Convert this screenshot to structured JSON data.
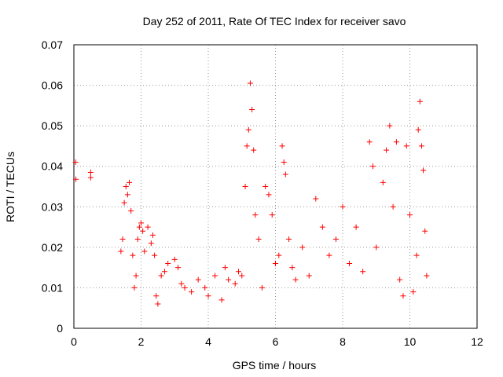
{
  "chart_data": {
    "type": "scatter",
    "title": "Day 252 of 2011, Rate Of TEC Index for receiver savo",
    "xlabel": "GPS time / hours",
    "ylabel": "ROTI / TECUs",
    "xlim": [
      0,
      12
    ],
    "ylim": [
      0,
      0.07
    ],
    "x_ticks": [
      "0",
      "2",
      "4",
      "6",
      "8",
      "10",
      "12"
    ],
    "y_ticks": [
      "0",
      "0.01",
      "0.02",
      "0.03",
      "0.04",
      "0.05",
      "0.06",
      "0.07"
    ],
    "grid": true,
    "legend": "none",
    "marker": "plus",
    "color": "#ff0000",
    "series": [
      {
        "values": [
          [
            0.05,
            0.041
          ],
          [
            0.06,
            0.0368
          ],
          [
            0.5,
            0.0385
          ],
          [
            0.5,
            0.0372
          ],
          [
            1.4,
            0.019
          ],
          [
            1.45,
            0.022
          ],
          [
            1.5,
            0.031
          ],
          [
            1.55,
            0.035
          ],
          [
            1.6,
            0.033
          ],
          [
            1.65,
            0.036
          ],
          [
            1.7,
            0.029
          ],
          [
            1.75,
            0.018
          ],
          [
            1.8,
            0.01
          ],
          [
            1.85,
            0.013
          ],
          [
            1.9,
            0.022
          ],
          [
            1.95,
            0.025
          ],
          [
            2.0,
            0.026
          ],
          [
            2.05,
            0.024
          ],
          [
            2.1,
            0.019
          ],
          [
            2.2,
            0.025
          ],
          [
            2.3,
            0.021
          ],
          [
            2.35,
            0.023
          ],
          [
            2.4,
            0.018
          ],
          [
            2.45,
            0.008
          ],
          [
            2.5,
            0.006
          ],
          [
            2.6,
            0.013
          ],
          [
            2.7,
            0.014
          ],
          [
            2.8,
            0.016
          ],
          [
            3.0,
            0.017
          ],
          [
            3.1,
            0.015
          ],
          [
            3.2,
            0.011
          ],
          [
            3.3,
            0.01
          ],
          [
            3.5,
            0.009
          ],
          [
            3.7,
            0.012
          ],
          [
            3.9,
            0.01
          ],
          [
            4.0,
            0.008
          ],
          [
            4.2,
            0.013
          ],
          [
            4.4,
            0.007
          ],
          [
            4.5,
            0.015
          ],
          [
            4.6,
            0.012
          ],
          [
            4.8,
            0.011
          ],
          [
            4.9,
            0.014
          ],
          [
            5.0,
            0.013
          ],
          [
            5.1,
            0.035
          ],
          [
            5.15,
            0.045
          ],
          [
            5.2,
            0.049
          ],
          [
            5.25,
            0.0605
          ],
          [
            5.3,
            0.054
          ],
          [
            5.35,
            0.044
          ],
          [
            5.4,
            0.028
          ],
          [
            5.5,
            0.022
          ],
          [
            5.6,
            0.01
          ],
          [
            5.7,
            0.035
          ],
          [
            5.8,
            0.033
          ],
          [
            5.9,
            0.028
          ],
          [
            6.0,
            0.016
          ],
          [
            6.1,
            0.018
          ],
          [
            6.2,
            0.045
          ],
          [
            6.25,
            0.041
          ],
          [
            6.3,
            0.038
          ],
          [
            6.4,
            0.022
          ],
          [
            6.5,
            0.015
          ],
          [
            6.6,
            0.012
          ],
          [
            6.8,
            0.02
          ],
          [
            7.0,
            0.013
          ],
          [
            7.2,
            0.032
          ],
          [
            7.4,
            0.025
          ],
          [
            7.6,
            0.018
          ],
          [
            7.8,
            0.022
          ],
          [
            8.0,
            0.03
          ],
          [
            8.2,
            0.016
          ],
          [
            8.4,
            0.025
          ],
          [
            8.6,
            0.014
          ],
          [
            8.8,
            0.046
          ],
          [
            8.9,
            0.04
          ],
          [
            9.0,
            0.02
          ],
          [
            9.2,
            0.036
          ],
          [
            9.3,
            0.044
          ],
          [
            9.4,
            0.05
          ],
          [
            9.5,
            0.03
          ],
          [
            9.6,
            0.046
          ],
          [
            9.7,
            0.012
          ],
          [
            9.8,
            0.008
          ],
          [
            9.9,
            0.045
          ],
          [
            10.0,
            0.028
          ],
          [
            10.1,
            0.009
          ],
          [
            10.2,
            0.018
          ],
          [
            10.25,
            0.049
          ],
          [
            10.3,
            0.056
          ],
          [
            10.35,
            0.045
          ],
          [
            10.4,
            0.039
          ],
          [
            10.45,
            0.024
          ],
          [
            10.5,
            0.013
          ]
        ]
      }
    ]
  }
}
